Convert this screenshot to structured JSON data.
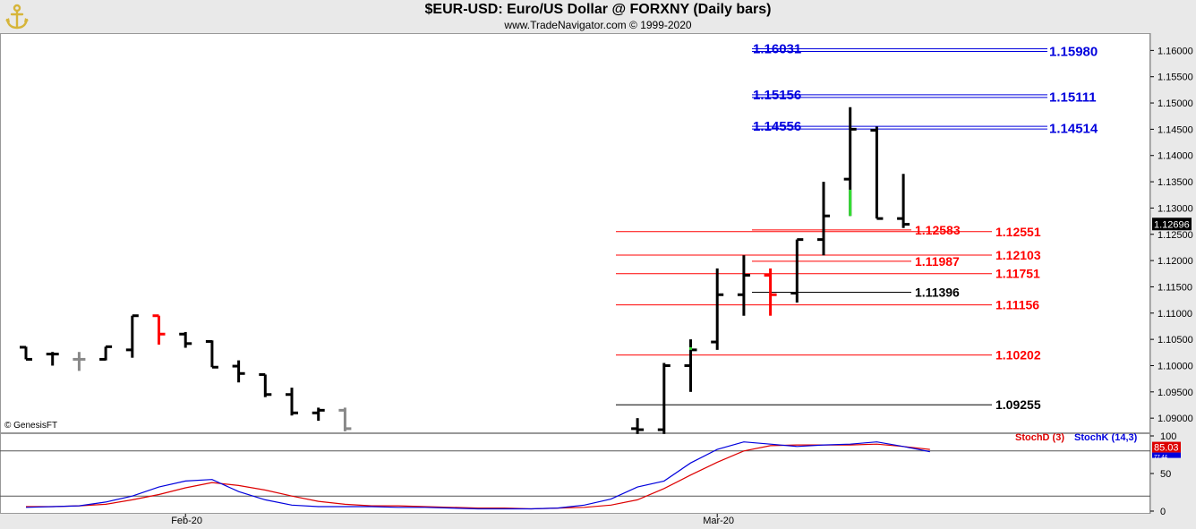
{
  "header": {
    "title": "$EUR-USD:  Euro/US Dollar @ FORXNY  (Daily bars)",
    "subtitle": "www.TradeNavigator.com © 1999-2020"
  },
  "copyright": "© GenesisFT",
  "logo": {
    "icon": "anchor-logo-icon",
    "color": "#d6b53a"
  },
  "chart_data": [
    {
      "type": "bar",
      "title": "$EUR-USD:  Euro/US Dollar @ FORXNY  (Daily bars)",
      "y_ticks": [
        "1.16000",
        "1.15500",
        "1.15000",
        "1.14500",
        "1.14000",
        "1.13500",
        "1.13000",
        "1.12500",
        "1.12000",
        "1.11500",
        "1.11000",
        "1.10500",
        "1.10000",
        "1.09500",
        "1.09000"
      ],
      "ylim": [
        1.0873,
        1.1633
      ],
      "x_labels": [
        {
          "label": "Feb-20",
          "bar": 6
        },
        {
          "label": "Mar-20",
          "bar": 26
        }
      ],
      "last_price": "1.12696",
      "colors": {
        "up": "#000000",
        "down": "#000000",
        "highlight_red": "#ff0000",
        "highlight_green": "#33dd33",
        "gray": "#888888"
      },
      "ohlc": [
        [
          1.1035,
          1.1036,
          1.1012,
          1.1012,
          "#000000"
        ],
        [
          1.1022,
          1.1026,
          1.1,
          1.1022,
          "#000000"
        ],
        [
          1.1012,
          1.1026,
          1.099,
          1.1012,
          "#888888"
        ],
        [
          1.1012,
          1.1036,
          1.101,
          1.1036,
          "#000000"
        ],
        [
          1.103,
          1.1095,
          1.1015,
          1.1095,
          "#000000"
        ],
        [
          1.1095,
          1.1095,
          1.104,
          1.106,
          "#ff0000"
        ],
        [
          1.106,
          1.1064,
          1.1034,
          1.1042,
          "#000000"
        ],
        [
          1.1046,
          1.1048,
          1.0997,
          1.0997,
          "#000000"
        ],
        [
          1.0999,
          1.101,
          1.0968,
          1.0985,
          "#000000"
        ],
        [
          1.0983,
          1.0983,
          1.094,
          1.0945,
          "#000000"
        ],
        [
          1.0945,
          1.0958,
          1.0905,
          1.091,
          "#000000"
        ],
        [
          1.091,
          1.092,
          1.0895,
          1.0915,
          "#000000"
        ],
        [
          1.0915,
          1.092,
          1.0875,
          1.088,
          "#888888"
        ],
        [
          null,
          null,
          null,
          null,
          ""
        ],
        [
          null,
          null,
          null,
          null,
          ""
        ],
        [
          null,
          null,
          null,
          null,
          ""
        ],
        [
          null,
          null,
          null,
          null,
          ""
        ],
        [
          null,
          null,
          null,
          null,
          ""
        ],
        [
          null,
          null,
          null,
          null,
          ""
        ],
        [
          null,
          null,
          null,
          null,
          ""
        ],
        [
          null,
          null,
          null,
          null,
          ""
        ],
        [
          null,
          null,
          null,
          null,
          ""
        ],
        [
          null,
          null,
          null,
          null,
          ""
        ],
        [
          1.088,
          1.09,
          1.087,
          1.0878,
          "#000000"
        ],
        [
          1.0878,
          1.1005,
          1.087,
          1.1,
          "#000000"
        ],
        [
          1.1,
          1.105,
          1.095,
          1.103,
          "#000000"
        ],
        [
          1.1045,
          1.1185,
          1.103,
          1.1135,
          "#000000"
        ],
        [
          1.1135,
          1.121,
          1.1095,
          1.1172,
          "#000000"
        ],
        [
          1.1172,
          1.1185,
          1.1095,
          1.1135,
          "#ff0000"
        ],
        [
          1.1138,
          1.124,
          1.112,
          1.124,
          "#000000"
        ],
        [
          1.124,
          1.135,
          1.121,
          1.1285,
          "#000000"
        ],
        [
          1.1355,
          1.1492,
          1.1285,
          1.145,
          "#000000"
        ],
        [
          1.1448,
          1.1455,
          1.128,
          1.128,
          "#000000"
        ],
        [
          1.128,
          1.1365,
          1.1262,
          1.1269,
          "#000000"
        ]
      ],
      "green_segments": [
        [
          25,
          1.1035,
          1.103
        ],
        [
          31,
          1.1335,
          1.1285
        ]
      ],
      "annotations": [
        {
          "value": "1.16031",
          "y": 1.16031,
          "color": "#0000dd",
          "x0": 0.62,
          "x1": 0.87,
          "align": "left-label",
          "double": true
        },
        {
          "value": "1.15980",
          "y": 1.1598,
          "color": "#0000dd",
          "side": "right"
        },
        {
          "value": "1.15156",
          "y": 1.15156,
          "color": "#0000dd",
          "double": true
        },
        {
          "value": "1.15111",
          "y": 1.15111,
          "color": "#0000dd",
          "side": "right"
        },
        {
          "value": "1.14556",
          "y": 1.14556,
          "color": "#0000dd",
          "double": true
        },
        {
          "value": "1.14514",
          "y": 1.14514,
          "color": "#0000dd",
          "side": "right"
        },
        {
          "value": "1.12583",
          "y": 1.12583,
          "color": "#ff0000"
        },
        {
          "value": "1.12551",
          "y": 1.12551,
          "color": "#ff0000",
          "side": "right"
        },
        {
          "value": "1.12103",
          "y": 1.12103,
          "color": "#ff0000",
          "side": "right"
        },
        {
          "value": "1.11987",
          "y": 1.11987,
          "color": "#ff0000"
        },
        {
          "value": "1.11751",
          "y": 1.11751,
          "color": "#ff0000",
          "side": "right"
        },
        {
          "value": "1.11396",
          "y": 1.11396,
          "color": "#000000"
        },
        {
          "value": "1.11156",
          "y": 1.11156,
          "color": "#ff0000",
          "side": "right"
        },
        {
          "value": "1.10202",
          "y": 1.10202,
          "color": "#ff0000",
          "side": "right"
        },
        {
          "value": "1.09255",
          "y": 1.09255,
          "color": "#000000",
          "side": "right"
        }
      ]
    },
    {
      "type": "line",
      "legend": [
        {
          "name": "StochD (3)",
          "color": "#dd0000"
        },
        {
          "name": "StochK (14,3)",
          "color": "#0000dd"
        }
      ],
      "y_ticks": [
        "100",
        "50",
        "0"
      ],
      "ylim": [
        0,
        100
      ],
      "levels": [
        80,
        20
      ],
      "stochd_value": "85.03",
      "stochk_value": "77.44",
      "series": [
        {
          "name": "StochD (3)",
          "color": "#dd0000",
          "values": [
            6,
            6,
            7,
            9,
            15,
            22,
            31,
            38,
            34,
            28,
            20,
            13,
            9,
            7,
            7,
            6,
            5,
            4,
            4,
            3,
            4,
            5,
            8,
            15,
            30,
            48,
            65,
            80,
            87,
            88,
            88,
            88,
            89,
            86,
            82
          ]
        },
        {
          "name": "StochK (14,3)",
          "color": "#0000dd",
          "values": [
            5,
            6,
            7,
            12,
            20,
            32,
            40,
            42,
            26,
            15,
            8,
            6,
            6,
            6,
            5,
            5,
            4,
            3,
            3,
            3,
            4,
            8,
            16,
            32,
            40,
            64,
            82,
            92,
            89,
            86,
            88,
            89,
            92,
            86,
            79
          ]
        }
      ]
    }
  ]
}
